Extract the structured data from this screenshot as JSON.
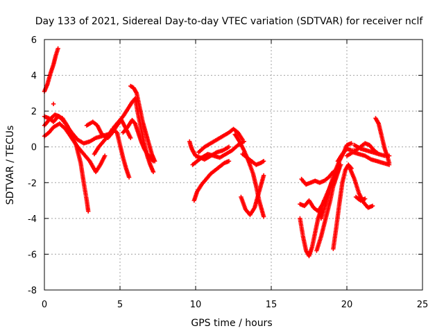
{
  "chart_data": {
    "type": "scatter",
    "title": "Day 133 of 2021, Sidereal Day-to-day VTEC variation (SDTVAR) for receiver nclf",
    "xlabel": "GPS time / hours",
    "ylabel": "SDTVAR / TECUs",
    "xlim": [
      0,
      25
    ],
    "ylim": [
      -8,
      6
    ],
    "xticks": [
      0,
      5,
      10,
      15,
      20,
      25
    ],
    "yticks": [
      -8,
      -6,
      -4,
      -2,
      0,
      2,
      4,
      6
    ],
    "grid": true,
    "marker": "+",
    "color": "#ff0000",
    "series": [
      {
        "points": [
          [
            0,
            3.1
          ],
          [
            0.2,
            3.5
          ],
          [
            0.4,
            4.1
          ],
          [
            0.6,
            4.6
          ],
          [
            0.75,
            5.1
          ],
          [
            0.9,
            5.5
          ]
        ]
      },
      {
        "points": [
          [
            0,
            1.7
          ],
          [
            0.3,
            1.6
          ],
          [
            0.6,
            1.4
          ],
          [
            0.9,
            1.7
          ],
          [
            1.2,
            1.6
          ],
          [
            1.5,
            1.2
          ],
          [
            1.8,
            0.6
          ],
          [
            2.1,
            0.1
          ],
          [
            2.4,
            -0.9
          ],
          [
            2.6,
            -2.0
          ],
          [
            2.8,
            -3.0
          ],
          [
            2.9,
            -3.6
          ]
        ]
      },
      {
        "points": [
          [
            0,
            0.6
          ],
          [
            0.3,
            0.8
          ],
          [
            0.6,
            1.1
          ],
          [
            1.0,
            1.3
          ],
          [
            1.4,
            1.0
          ],
          [
            1.8,
            0.5
          ],
          [
            2.2,
            0.0
          ],
          [
            2.6,
            -0.4
          ],
          [
            3.0,
            -0.8
          ],
          [
            3.4,
            -1.4
          ],
          [
            3.7,
            -1.0
          ],
          [
            4.0,
            -0.5
          ]
        ]
      },
      {
        "points": [
          [
            0,
            1.2
          ],
          [
            0.3,
            1.5
          ],
          [
            0.7,
            1.8
          ],
          [
            1.0,
            1.7
          ],
          [
            1.4,
            1.3
          ],
          [
            1.8,
            0.8
          ],
          [
            2.2,
            0.4
          ],
          [
            2.6,
            0.2
          ],
          [
            3.0,
            0.3
          ],
          [
            3.4,
            0.5
          ],
          [
            3.8,
            0.6
          ],
          [
            4.2,
            0.7
          ]
        ]
      },
      {
        "points": [
          [
            0.6,
            2.4
          ]
        ]
      },
      {
        "points": [
          [
            2.8,
            1.2
          ],
          [
            3.2,
            1.4
          ],
          [
            3.5,
            1.2
          ],
          [
            3.8,
            0.7
          ],
          [
            4.2,
            0.5
          ],
          [
            4.5,
            0.8
          ],
          [
            4.8,
            1.2
          ],
          [
            5.1,
            1.5
          ],
          [
            5.4,
            1.0
          ],
          [
            5.7,
            0.5
          ]
        ]
      },
      {
        "points": [
          [
            3.3,
            -0.4
          ],
          [
            3.6,
            0.0
          ],
          [
            3.9,
            0.3
          ],
          [
            4.2,
            0.6
          ],
          [
            4.5,
            1.0
          ],
          [
            4.8,
            0.8
          ],
          [
            5.0,
            0.1
          ],
          [
            5.2,
            -0.6
          ],
          [
            5.4,
            -1.2
          ],
          [
            5.6,
            -1.7
          ]
        ]
      },
      {
        "points": [
          [
            4.6,
            1.1
          ],
          [
            4.9,
            1.4
          ],
          [
            5.2,
            1.7
          ],
          [
            5.5,
            2.1
          ],
          [
            5.8,
            2.5
          ],
          [
            6.0,
            2.7
          ],
          [
            6.2,
            1.8
          ],
          [
            6.4,
            1.0
          ],
          [
            6.6,
            0.2
          ],
          [
            6.8,
            -0.5
          ],
          [
            7.0,
            -1.0
          ],
          [
            7.2,
            -1.4
          ]
        ]
      },
      {
        "points": [
          [
            5.2,
            0.8
          ],
          [
            5.5,
            1.1
          ],
          [
            5.8,
            1.5
          ],
          [
            6.0,
            1.3
          ],
          [
            6.2,
            0.8
          ],
          [
            6.4,
            0.3
          ],
          [
            6.6,
            -0.1
          ],
          [
            6.8,
            -0.4
          ],
          [
            7.0,
            -0.6
          ],
          [
            7.2,
            -0.8
          ]
        ]
      },
      {
        "points": [
          [
            5.7,
            3.4
          ],
          [
            5.9,
            3.3
          ],
          [
            6.1,
            3.0
          ],
          [
            6.3,
            2.2
          ],
          [
            6.5,
            1.4
          ],
          [
            6.7,
            0.8
          ],
          [
            6.9,
            0.2
          ],
          [
            7.1,
            -0.4
          ],
          [
            7.3,
            -0.8
          ]
        ]
      },
      {
        "points": [
          [
            9.6,
            0.3
          ],
          [
            9.7,
            0.0
          ],
          [
            9.8,
            -0.2
          ],
          [
            10.0,
            -0.5
          ],
          [
            10.3,
            -0.6
          ],
          [
            10.6,
            -0.7
          ],
          [
            11.0,
            -0.5
          ],
          [
            11.4,
            -0.3
          ],
          [
            11.8,
            -0.2
          ],
          [
            12.2,
            0.0
          ]
        ]
      },
      {
        "points": [
          [
            9.8,
            -1.0
          ],
          [
            10.1,
            -0.8
          ],
          [
            10.4,
            -0.6
          ],
          [
            10.8,
            -0.4
          ],
          [
            11.2,
            -0.5
          ],
          [
            11.6,
            -0.6
          ],
          [
            12.0,
            -0.4
          ],
          [
            12.4,
            -0.2
          ],
          [
            12.8,
            0.1
          ],
          [
            13.2,
            0.3
          ]
        ]
      },
      {
        "points": [
          [
            9.9,
            -3.0
          ],
          [
            10.1,
            -2.5
          ],
          [
            10.4,
            -2.1
          ],
          [
            10.7,
            -1.8
          ],
          [
            11.0,
            -1.5
          ],
          [
            11.3,
            -1.3
          ],
          [
            11.6,
            -1.1
          ],
          [
            11.9,
            -0.9
          ],
          [
            12.2,
            -0.8
          ]
        ]
      },
      {
        "points": [
          [
            10.2,
            -0.3
          ],
          [
            10.6,
            0.0
          ],
          [
            11.0,
            0.2
          ],
          [
            11.4,
            0.4
          ],
          [
            11.8,
            0.6
          ],
          [
            12.2,
            0.8
          ],
          [
            12.5,
            1.0
          ],
          [
            12.8,
            0.8
          ],
          [
            13.1,
            0.4
          ]
        ]
      },
      {
        "points": [
          [
            12.6,
            0.7
          ],
          [
            12.9,
            0.3
          ],
          [
            13.2,
            -0.2
          ],
          [
            13.5,
            -0.8
          ],
          [
            13.8,
            -1.5
          ],
          [
            14.0,
            -2.2
          ],
          [
            14.2,
            -3.0
          ],
          [
            14.4,
            -3.6
          ],
          [
            14.5,
            -3.9
          ]
        ]
      },
      {
        "points": [
          [
            13.1,
            -0.4
          ],
          [
            13.4,
            -0.6
          ],
          [
            13.7,
            -0.8
          ],
          [
            14.0,
            -1.0
          ],
          [
            14.3,
            -0.9
          ],
          [
            14.5,
            -0.8
          ]
        ]
      },
      {
        "points": [
          [
            13.0,
            -2.8
          ],
          [
            13.3,
            -3.5
          ],
          [
            13.6,
            -3.8
          ],
          [
            13.9,
            -3.4
          ],
          [
            14.1,
            -2.8
          ],
          [
            14.3,
            -2.2
          ],
          [
            14.5,
            -1.6
          ]
        ]
      },
      {
        "points": [
          [
            17.0,
            -1.8
          ],
          [
            17.3,
            -2.1
          ],
          [
            17.6,
            -2.0
          ],
          [
            17.9,
            -1.9
          ],
          [
            18.2,
            -2.0
          ],
          [
            18.5,
            -1.9
          ],
          [
            18.8,
            -1.7
          ],
          [
            19.1,
            -1.4
          ]
        ]
      },
      {
        "points": [
          [
            16.9,
            -3.2
          ],
          [
            17.2,
            -3.3
          ],
          [
            17.5,
            -3.0
          ],
          [
            17.8,
            -3.4
          ],
          [
            18.1,
            -3.6
          ],
          [
            18.4,
            -3.2
          ],
          [
            18.7,
            -2.6
          ],
          [
            19.0,
            -2.0
          ],
          [
            19.3,
            -1.5
          ],
          [
            19.6,
            -1.0
          ]
        ]
      },
      {
        "points": [
          [
            16.9,
            -4.0
          ],
          [
            17.1,
            -5.0
          ],
          [
            17.3,
            -5.8
          ],
          [
            17.5,
            -6.1
          ],
          [
            17.7,
            -5.6
          ],
          [
            17.9,
            -4.8
          ],
          [
            18.1,
            -4.0
          ],
          [
            18.3,
            -3.5
          ],
          [
            18.5,
            -3.0
          ]
        ]
      },
      {
        "points": [
          [
            18.3,
            -4.0
          ],
          [
            18.6,
            -3.2
          ],
          [
            18.9,
            -2.2
          ],
          [
            19.2,
            -1.4
          ],
          [
            19.5,
            -0.8
          ],
          [
            19.8,
            -0.3
          ],
          [
            20.0,
            0.1
          ],
          [
            20.3,
            0.2
          ]
        ]
      },
      {
        "points": [
          [
            18.0,
            -5.8
          ],
          [
            18.3,
            -5.0
          ],
          [
            18.6,
            -4.0
          ],
          [
            18.9,
            -3.0
          ],
          [
            19.1,
            -2.2
          ],
          [
            19.3,
            -1.7
          ],
          [
            19.5,
            -1.2
          ]
        ]
      },
      {
        "points": [
          [
            19.1,
            -5.7
          ],
          [
            19.3,
            -4.5
          ],
          [
            19.5,
            -3.2
          ],
          [
            19.7,
            -2.0
          ],
          [
            19.9,
            -1.3
          ],
          [
            20.1,
            -1.0
          ],
          [
            20.3,
            -1.2
          ]
        ]
      },
      {
        "points": [
          [
            19.4,
            -0.8
          ],
          [
            19.7,
            -0.4
          ],
          [
            20.0,
            -0.1
          ],
          [
            20.3,
            -0.2
          ],
          [
            20.6,
            -0.2
          ],
          [
            20.9,
            0.0
          ],
          [
            21.2,
            0.2
          ],
          [
            21.5,
            0.1
          ],
          [
            21.8,
            -0.2
          ],
          [
            22.1,
            -0.4
          ]
        ]
      },
      {
        "points": [
          [
            20.2,
            -1.2
          ],
          [
            20.5,
            -1.8
          ],
          [
            20.8,
            -2.6
          ],
          [
            21.1,
            -3.1
          ],
          [
            21.4,
            -3.4
          ],
          [
            21.7,
            -3.3
          ]
        ]
      },
      {
        "points": [
          [
            20.6,
            -2.8
          ],
          [
            20.9,
            -3.0
          ],
          [
            21.2,
            -2.9
          ]
        ]
      },
      {
        "points": [
          [
            20.0,
            -0.5
          ],
          [
            20.4,
            -0.3
          ],
          [
            20.8,
            -0.4
          ],
          [
            21.2,
            -0.5
          ],
          [
            21.6,
            -0.7
          ],
          [
            22.0,
            -0.8
          ],
          [
            22.4,
            -0.9
          ],
          [
            22.8,
            -1.0
          ]
        ]
      },
      {
        "points": [
          [
            21.9,
            1.6
          ],
          [
            22.1,
            1.3
          ],
          [
            22.3,
            0.6
          ],
          [
            22.5,
            -0.1
          ],
          [
            22.7,
            -0.6
          ],
          [
            22.8,
            -0.9
          ]
        ]
      },
      {
        "points": [
          [
            20.5,
            0.1
          ],
          [
            20.9,
            -0.1
          ],
          [
            21.3,
            -0.2
          ],
          [
            21.7,
            -0.3
          ],
          [
            22.1,
            -0.4
          ],
          [
            22.5,
            -0.5
          ],
          [
            22.8,
            -0.5
          ]
        ]
      }
    ]
  }
}
